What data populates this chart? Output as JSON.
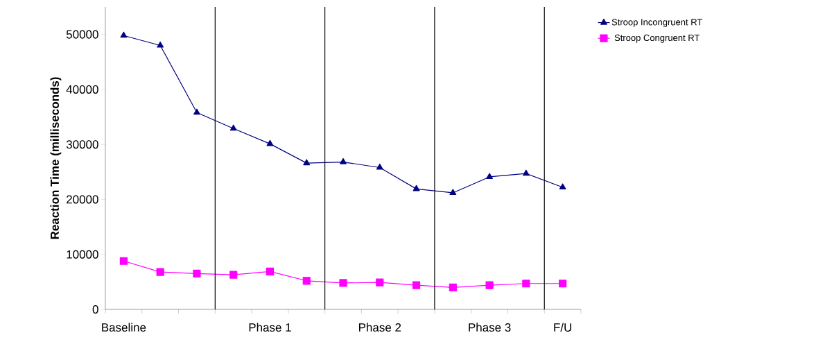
{
  "chart_data": {
    "type": "line",
    "ylabel": "Reaction Time (milliseconds)",
    "categories": [
      "Baseline",
      null,
      null,
      null,
      "Phase 1",
      null,
      null,
      "Phase 2",
      null,
      null,
      "Phase 3",
      null,
      "F/U"
    ],
    "series": [
      {
        "name": "Stroop Incongruent RT",
        "color": "#000080",
        "marker": "triangle",
        "values": [
          49800,
          48000,
          35800,
          32900,
          30100,
          26600,
          26800,
          25800,
          21900,
          21200,
          24100,
          24700,
          22200
        ]
      },
      {
        "name": "Stroop Congruent RT",
        "color": "#ff00ff",
        "marker": "square",
        "values": [
          8800,
          6800,
          6500,
          6300,
          6900,
          5200,
          4800,
          4900,
          4400,
          4000,
          4400,
          4700,
          4700
        ]
      }
    ],
    "ylim": [
      0,
      55000
    ],
    "yticks": [
      0,
      10000,
      20000,
      30000,
      40000,
      50000
    ],
    "grid": false,
    "legend": "top right",
    "line_style": "solid"
  }
}
